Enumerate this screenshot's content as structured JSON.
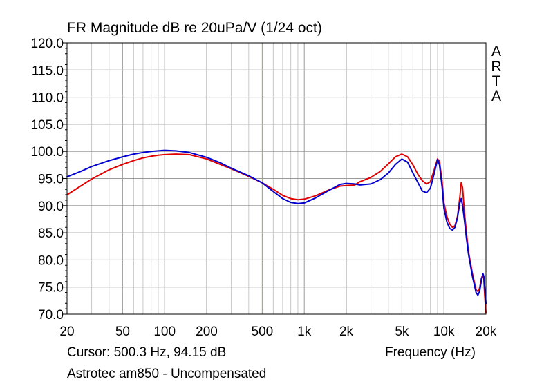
{
  "chart_data": {
    "type": "line",
    "title": "FR Magnitude dB re 20uPa/V (1/24 oct)",
    "xlabel": "Frequency (Hz)",
    "ylabel": "",
    "x_scale": "log",
    "xlim": [
      20,
      20000
    ],
    "ylim": [
      70,
      120
    ],
    "x_ticks": [
      {
        "value": 20,
        "label": "20"
      },
      {
        "value": 50,
        "label": "50"
      },
      {
        "value": 100,
        "label": "100"
      },
      {
        "value": 200,
        "label": "200"
      },
      {
        "value": 500,
        "label": "500"
      },
      {
        "value": 1000,
        "label": "1k"
      },
      {
        "value": 2000,
        "label": "2k"
      },
      {
        "value": 5000,
        "label": "5k"
      },
      {
        "value": 10000,
        "label": "10k"
      },
      {
        "value": 20000,
        "label": "20k"
      }
    ],
    "y_ticks": [
      {
        "value": 120,
        "label": "120.0"
      },
      {
        "value": 115,
        "label": "115.0"
      },
      {
        "value": 110,
        "label": "110.0"
      },
      {
        "value": 105,
        "label": "105.0"
      },
      {
        "value": 100,
        "label": "100.0"
      },
      {
        "value": 95,
        "label": "95.0"
      },
      {
        "value": 90,
        "label": "90.0"
      },
      {
        "value": 85,
        "label": "85.0"
      },
      {
        "value": 80,
        "label": "80.0"
      },
      {
        "value": 75,
        "label": "75.0"
      },
      {
        "value": 70,
        "label": "70.0"
      }
    ],
    "grid": true,
    "cursor_x": 500.3,
    "series": [
      {
        "name": "red",
        "color": "#e00000",
        "points": [
          [
            20,
            92.0
          ],
          [
            25,
            93.6
          ],
          [
            30,
            94.9
          ],
          [
            40,
            96.6
          ],
          [
            50,
            97.6
          ],
          [
            60,
            98.3
          ],
          [
            70,
            98.8
          ],
          [
            80,
            99.1
          ],
          [
            90,
            99.3
          ],
          [
            100,
            99.4
          ],
          [
            120,
            99.5
          ],
          [
            150,
            99.4
          ],
          [
            200,
            98.6
          ],
          [
            250,
            97.6
          ],
          [
            300,
            96.8
          ],
          [
            400,
            95.4
          ],
          [
            500,
            94.2
          ],
          [
            600,
            93.0
          ],
          [
            700,
            91.9
          ],
          [
            800,
            91.3
          ],
          [
            900,
            91.1
          ],
          [
            1000,
            91.2
          ],
          [
            1200,
            91.8
          ],
          [
            1500,
            92.9
          ],
          [
            1800,
            93.6
          ],
          [
            2000,
            93.7
          ],
          [
            2300,
            93.8
          ],
          [
            2500,
            94.4
          ],
          [
            3000,
            95.2
          ],
          [
            3500,
            96.3
          ],
          [
            4000,
            97.7
          ],
          [
            4500,
            99.0
          ],
          [
            5000,
            99.5
          ],
          [
            5500,
            99.0
          ],
          [
            6000,
            97.5
          ],
          [
            6500,
            95.8
          ],
          [
            7000,
            94.6
          ],
          [
            7500,
            94.0
          ],
          [
            8000,
            94.4
          ],
          [
            8500,
            96.5
          ],
          [
            9000,
            98.6
          ],
          [
            9300,
            98.2
          ],
          [
            9700,
            94.5
          ],
          [
            10000,
            90.5
          ],
          [
            10500,
            88.0
          ],
          [
            11000,
            86.6
          ],
          [
            11500,
            86.0
          ],
          [
            12000,
            86.3
          ],
          [
            12500,
            88.0
          ],
          [
            13000,
            91.5
          ],
          [
            13300,
            94.2
          ],
          [
            13600,
            93.3
          ],
          [
            14000,
            89.0
          ],
          [
            14500,
            85.0
          ],
          [
            15000,
            81.5
          ],
          [
            16000,
            77.5
          ],
          [
            17000,
            74.5
          ],
          [
            17500,
            74.2
          ],
          [
            18000,
            74.8
          ],
          [
            18500,
            76.5
          ],
          [
            19000,
            77.3
          ],
          [
            19300,
            76.5
          ],
          [
            19600,
            73.5
          ],
          [
            20000,
            70.2
          ]
        ]
      },
      {
        "name": "blue",
        "color": "#0000d0",
        "points": [
          [
            20,
            95.3
          ],
          [
            25,
            96.3
          ],
          [
            30,
            97.2
          ],
          [
            40,
            98.3
          ],
          [
            50,
            99.0
          ],
          [
            60,
            99.5
          ],
          [
            70,
            99.8
          ],
          [
            80,
            100.0
          ],
          [
            90,
            100.1
          ],
          [
            100,
            100.2
          ],
          [
            120,
            100.1
          ],
          [
            150,
            99.8
          ],
          [
            200,
            98.9
          ],
          [
            250,
            97.9
          ],
          [
            300,
            96.9
          ],
          [
            400,
            95.5
          ],
          [
            500,
            94.2
          ],
          [
            600,
            92.6
          ],
          [
            700,
            91.3
          ],
          [
            800,
            90.6
          ],
          [
            900,
            90.4
          ],
          [
            1000,
            90.5
          ],
          [
            1200,
            91.4
          ],
          [
            1500,
            92.8
          ],
          [
            1800,
            93.9
          ],
          [
            2000,
            94.1
          ],
          [
            2300,
            94.0
          ],
          [
            2500,
            93.8
          ],
          [
            3000,
            94.0
          ],
          [
            3500,
            94.8
          ],
          [
            4000,
            96.0
          ],
          [
            4500,
            97.6
          ],
          [
            5000,
            98.6
          ],
          [
            5500,
            98.0
          ],
          [
            6000,
            96.0
          ],
          [
            6500,
            94.3
          ],
          [
            7000,
            92.7
          ],
          [
            7500,
            92.4
          ],
          [
            8000,
            93.2
          ],
          [
            8500,
            95.8
          ],
          [
            9000,
            98.5
          ],
          [
            9300,
            97.5
          ],
          [
            9700,
            93.5
          ],
          [
            10000,
            89.5
          ],
          [
            10500,
            87.0
          ],
          [
            11000,
            85.8
          ],
          [
            11500,
            85.5
          ],
          [
            12000,
            86.0
          ],
          [
            12500,
            87.8
          ],
          [
            13000,
            90.5
          ],
          [
            13300,
            91.3
          ],
          [
            13600,
            90.0
          ],
          [
            14000,
            87.5
          ],
          [
            14500,
            84.0
          ],
          [
            15000,
            81.0
          ],
          [
            16000,
            77.0
          ],
          [
            17000,
            74.0
          ],
          [
            17500,
            73.5
          ],
          [
            18000,
            74.2
          ],
          [
            18500,
            76.0
          ],
          [
            19000,
            77.5
          ],
          [
            19300,
            77.0
          ],
          [
            19600,
            75.0
          ],
          [
            20000,
            72.0
          ]
        ]
      }
    ]
  },
  "side_label": [
    "A",
    "R",
    "T",
    "A"
  ],
  "cursor_readout": "Cursor: 500.3 Hz, 94.15 dB",
  "caption": "Astrotec am850 - Uncompensated"
}
